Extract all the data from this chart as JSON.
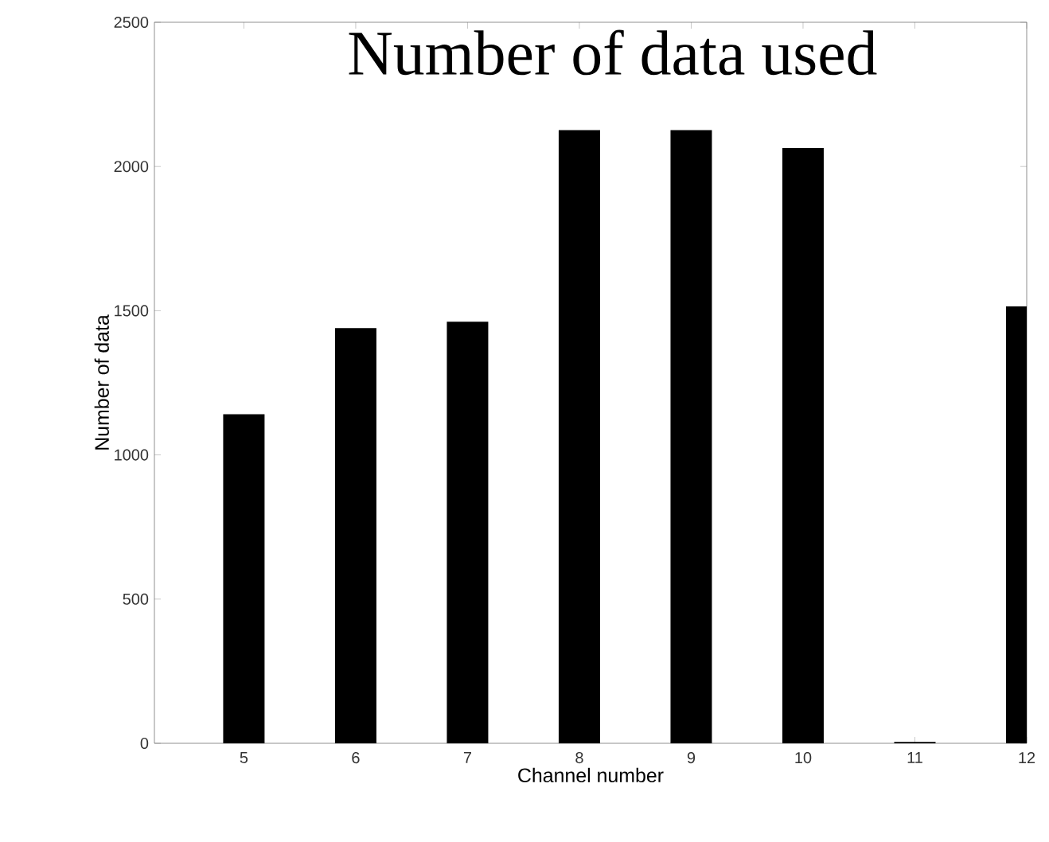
{
  "chart_data": {
    "type": "bar",
    "title": "Number of data used",
    "xlabel": "Channel number",
    "ylabel": "Number of data",
    "x": [
      5,
      6,
      7,
      8,
      9,
      10,
      11,
      12
    ],
    "values": [
      1141,
      1440,
      1462,
      2126,
      2126,
      2064,
      5,
      1515
    ],
    "color": "#000000",
    "xlim": [
      4.2,
      12
    ],
    "xticks": [
      5,
      6,
      7,
      8,
      9,
      10,
      11,
      12
    ],
    "ylim": [
      0,
      2500
    ],
    "yticks": [
      0,
      500,
      1000,
      1500,
      2000,
      2500
    ]
  }
}
